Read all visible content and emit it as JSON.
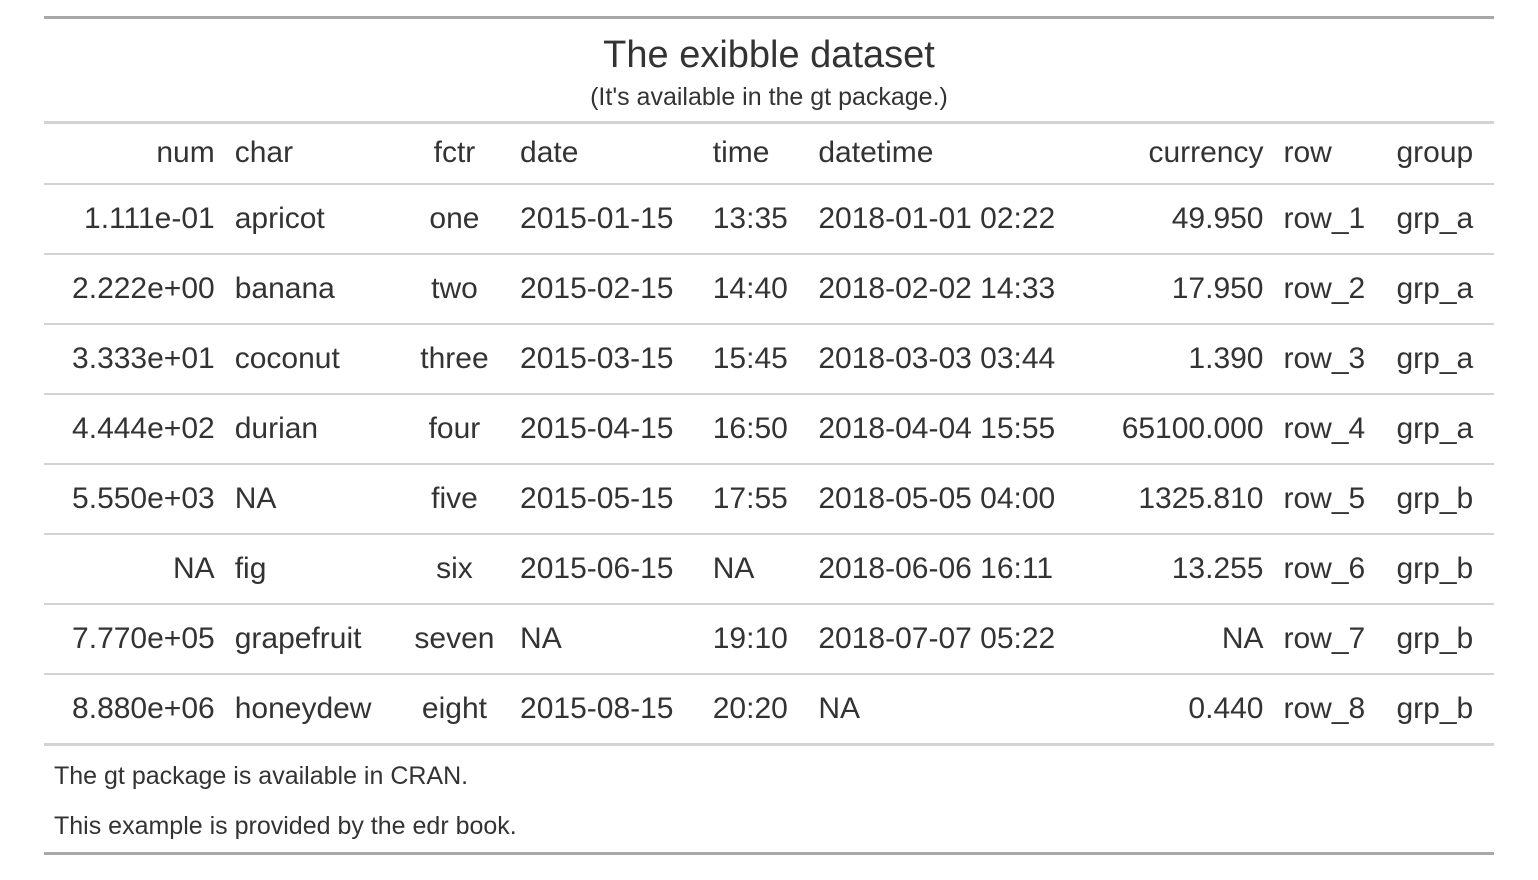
{
  "title": "The exibble dataset",
  "subtitle": "(It's available in the gt package.)",
  "columns": [
    "num",
    "char",
    "fctr",
    "date",
    "time",
    "datetime",
    "currency",
    "row",
    "group"
  ],
  "rows": [
    [
      "1.111e-01",
      "apricot",
      "one",
      "2015-01-15",
      "13:35",
      "2018-01-01 02:22",
      "49.950",
      "row_1",
      "grp_a"
    ],
    [
      "2.222e+00",
      "banana",
      "two",
      "2015-02-15",
      "14:40",
      "2018-02-02 14:33",
      "17.950",
      "row_2",
      "grp_a"
    ],
    [
      "3.333e+01",
      "coconut",
      "three",
      "2015-03-15",
      "15:45",
      "2018-03-03 03:44",
      "1.390",
      "row_3",
      "grp_a"
    ],
    [
      "4.444e+02",
      "durian",
      "four",
      "2015-04-15",
      "16:50",
      "2018-04-04 15:55",
      "65100.000",
      "row_4",
      "grp_a"
    ],
    [
      "5.550e+03",
      "NA",
      "five",
      "2015-05-15",
      "17:55",
      "2018-05-05 04:00",
      "1325.810",
      "row_5",
      "grp_b"
    ],
    [
      "NA",
      "fig",
      "six",
      "2015-06-15",
      "NA",
      "2018-06-06 16:11",
      "13.255",
      "row_6",
      "grp_b"
    ],
    [
      "7.770e+05",
      "grapefruit",
      "seven",
      "NA",
      "19:10",
      "2018-07-07 05:22",
      "NA",
      "row_7",
      "grp_b"
    ],
    [
      "8.880e+06",
      "honeydew",
      "eight",
      "2015-08-15",
      "20:20",
      "NA",
      "0.440",
      "row_8",
      "grp_b"
    ]
  ],
  "source_notes": [
    "The gt package is available in CRAN.",
    "This example is provided by the edr book."
  ]
}
